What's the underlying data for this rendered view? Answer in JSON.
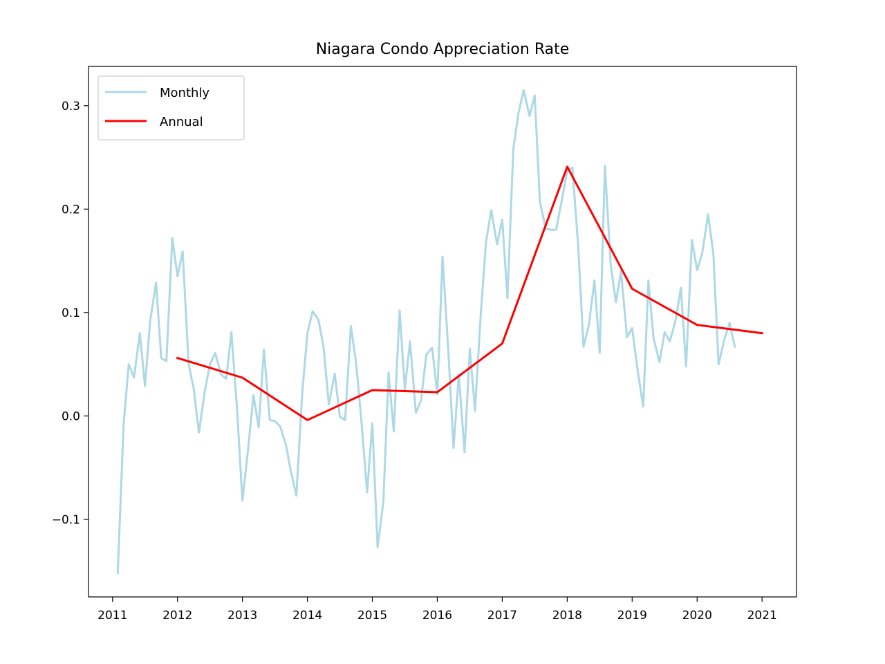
{
  "chart_data": {
    "type": "line",
    "title": "Niagara Condo Appreciation Rate",
    "xlabel": "",
    "ylabel": "",
    "xlim": [
      2010.63,
      2021.53
    ],
    "ylim": [
      -0.175,
      0.338
    ],
    "x_ticks": [
      2011,
      2012,
      2013,
      2014,
      2015,
      2016,
      2017,
      2018,
      2019,
      2020,
      2021
    ],
    "y_ticks": [
      -0.1,
      0.0,
      0.1,
      0.2,
      0.3
    ],
    "y_tick_labels": [
      "−0.1",
      "0.0",
      "0.1",
      "0.2",
      "0.3"
    ],
    "grid": false,
    "legend_position": "upper-left",
    "series": [
      {
        "name": "Monthly",
        "color": "#add8e6",
        "x": [
          2011.08,
          2011.17,
          2011.25,
          2011.33,
          2011.42,
          2011.5,
          2011.58,
          2011.67,
          2011.75,
          2011.83,
          2011.92,
          2012.0,
          2012.08,
          2012.17,
          2012.25,
          2012.33,
          2012.42,
          2012.5,
          2012.58,
          2012.67,
          2012.75,
          2012.83,
          2012.92,
          2013.0,
          2013.08,
          2013.17,
          2013.25,
          2013.33,
          2013.42,
          2013.5,
          2013.58,
          2013.67,
          2013.75,
          2013.83,
          2013.92,
          2014.0,
          2014.08,
          2014.17,
          2014.25,
          2014.33,
          2014.42,
          2014.5,
          2014.58,
          2014.67,
          2014.75,
          2014.83,
          2014.92,
          2015.0,
          2015.08,
          2015.17,
          2015.25,
          2015.33,
          2015.42,
          2015.5,
          2015.58,
          2015.67,
          2015.75,
          2015.83,
          2015.92,
          2016.0,
          2016.08,
          2016.17,
          2016.25,
          2016.33,
          2016.42,
          2016.5,
          2016.58,
          2016.67,
          2016.75,
          2016.83,
          2016.92,
          2017.0,
          2017.08,
          2017.17,
          2017.25,
          2017.33,
          2017.42,
          2017.5,
          2017.58,
          2017.67,
          2017.75,
          2017.83,
          2017.92,
          2018.0,
          2018.08,
          2018.17,
          2018.25,
          2018.33,
          2018.42,
          2018.5,
          2018.58,
          2018.67,
          2018.75,
          2018.83,
          2018.92,
          2019.0,
          2019.08,
          2019.17,
          2019.25,
          2019.33,
          2019.42,
          2019.5,
          2019.58,
          2019.67,
          2019.75,
          2019.83,
          2019.92,
          2020.0,
          2020.08,
          2020.17,
          2020.25,
          2020.33,
          2020.42,
          2020.5,
          2020.58
        ],
        "y": [
          -0.152,
          -0.009,
          0.05,
          0.037,
          0.08,
          0.029,
          0.092,
          0.129,
          0.056,
          0.053,
          0.172,
          0.135,
          0.159,
          0.051,
          0.026,
          -0.016,
          0.024,
          0.05,
          0.061,
          0.04,
          0.036,
          0.081,
          0.004,
          -0.082,
          -0.036,
          0.02,
          -0.011,
          0.064,
          -0.004,
          -0.005,
          -0.01,
          -0.028,
          -0.055,
          -0.077,
          0.022,
          0.08,
          0.101,
          0.093,
          0.066,
          0.011,
          0.041,
          -0.001,
          -0.004,
          0.087,
          0.051,
          -0.004,
          -0.074,
          -0.007,
          -0.127,
          -0.083,
          0.042,
          -0.015,
          0.102,
          0.026,
          0.072,
          0.003,
          0.015,
          0.059,
          0.066,
          0.021,
          0.154,
          0.062,
          -0.031,
          0.04,
          -0.035,
          0.065,
          0.005,
          0.099,
          0.168,
          0.199,
          0.166,
          0.19,
          0.114,
          0.258,
          0.293,
          0.315,
          0.29,
          0.31,
          0.207,
          0.181,
          0.18,
          0.18,
          0.21,
          0.237,
          0.24,
          0.164,
          0.067,
          0.087,
          0.131,
          0.061,
          0.242,
          0.146,
          0.11,
          0.14,
          0.076,
          0.085,
          0.046,
          0.009,
          0.131,
          0.075,
          0.052,
          0.081,
          0.072,
          0.093,
          0.124,
          0.048,
          0.17,
          0.141,
          0.158,
          0.195,
          0.156,
          0.05,
          0.074,
          0.09,
          0.067
        ]
      },
      {
        "name": "Annual",
        "color": "#ff0000",
        "x": [
          2012,
          2013,
          2014,
          2015,
          2016,
          2017,
          2018,
          2019,
          2020,
          2021
        ],
        "y": [
          0.056,
          0.037,
          -0.004,
          0.025,
          0.023,
          0.07,
          0.241,
          0.123,
          0.088,
          0.08
        ]
      }
    ]
  }
}
